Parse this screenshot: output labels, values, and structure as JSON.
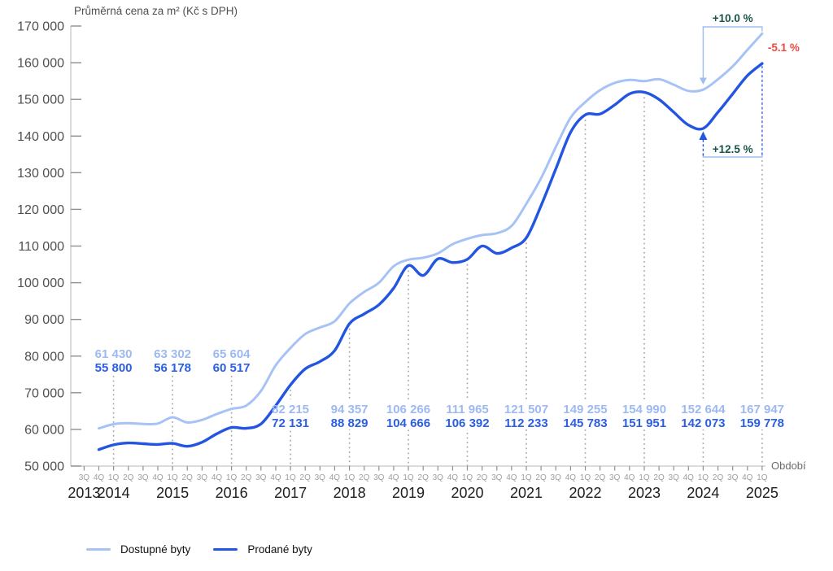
{
  "chart_data": {
    "type": "line",
    "title": "Průměrná cena za m² (Kč s DPH)",
    "x_axis_label": "Období",
    "ylim": [
      50000,
      170000
    ],
    "grid": "vertical-dotted-at-labeled-quarters",
    "legend_position": "bottom-left",
    "y_ticks": [
      {
        "value": 50000,
        "label": "50 000"
      },
      {
        "value": 60000,
        "label": "60 000"
      },
      {
        "value": 70000,
        "label": "70 000"
      },
      {
        "value": 80000,
        "label": "80 000"
      },
      {
        "value": 90000,
        "label": "90 000"
      },
      {
        "value": 100000,
        "label": "100 000"
      },
      {
        "value": 110000,
        "label": "110 000"
      },
      {
        "value": 120000,
        "label": "120 000"
      },
      {
        "value": 130000,
        "label": "130 000"
      },
      {
        "value": 140000,
        "label": "140 000"
      },
      {
        "value": 150000,
        "label": "150 000"
      },
      {
        "value": 160000,
        "label": "160 000"
      },
      {
        "value": 170000,
        "label": "170 000"
      }
    ],
    "x_quarter_labels": [
      "3Q",
      "4Q",
      "1Q",
      "2Q",
      "3Q",
      "4Q",
      "1Q",
      "2Q",
      "3Q",
      "4Q",
      "1Q",
      "2Q",
      "3Q",
      "4Q",
      "1Q",
      "2Q",
      "3Q",
      "4Q",
      "1Q",
      "2Q",
      "3Q",
      "4Q",
      "1Q",
      "2Q",
      "3Q",
      "4Q",
      "1Q",
      "2Q",
      "3Q",
      "4Q",
      "1Q",
      "2Q",
      "3Q",
      "4Q",
      "1Q",
      "2Q",
      "3Q",
      "4Q",
      "1Q",
      "2Q",
      "3Q",
      "4Q",
      "1Q",
      "2Q",
      "3Q",
      "4Q",
      "1Q"
    ],
    "x_year_labels": [
      {
        "label": "2013",
        "tick_index": 0
      },
      {
        "label": "2014",
        "tick_index": 2
      },
      {
        "label": "2015",
        "tick_index": 6
      },
      {
        "label": "2016",
        "tick_index": 10
      },
      {
        "label": "2017",
        "tick_index": 14
      },
      {
        "label": "2018",
        "tick_index": 18
      },
      {
        "label": "2019",
        "tick_index": 22
      },
      {
        "label": "2020",
        "tick_index": 26
      },
      {
        "label": "2021",
        "tick_index": 30
      },
      {
        "label": "2022",
        "tick_index": 34
      },
      {
        "label": "2023",
        "tick_index": 38
      },
      {
        "label": "2024",
        "tick_index": 42
      },
      {
        "label": "2025",
        "tick_index": 46
      }
    ],
    "series": [
      {
        "name": "Dostupné byty",
        "color": "#a7c2f5",
        "values": [
          null,
          60300,
          61430,
          61700,
          61500,
          61600,
          63302,
          61900,
          62600,
          64200,
          65604,
          66500,
          70500,
          77500,
          82215,
          86000,
          87800,
          89500,
          94357,
          97500,
          100000,
          104500,
          106266,
          106800,
          108000,
          110500,
          111965,
          113000,
          113500,
          115500,
          121507,
          128500,
          137000,
          145000,
          149255,
          152500,
          154500,
          155300,
          154990,
          155500,
          154000,
          152300,
          152644,
          155500,
          159000,
          163500,
          167947
        ]
      },
      {
        "name": "Prodané byty",
        "color": "#2155e2",
        "values": [
          null,
          54500,
          55800,
          56300,
          56100,
          55900,
          56178,
          55400,
          56500,
          58800,
          60517,
          60300,
          61500,
          66500,
          72131,
          76500,
          78500,
          81500,
          88829,
          91500,
          94000,
          98500,
          104666,
          102000,
          106500,
          105500,
          106392,
          110000,
          108000,
          109500,
          112233,
          121000,
          131000,
          141000,
          145783,
          146000,
          148500,
          151500,
          151951,
          150000,
          146500,
          143000,
          142073,
          146500,
          151500,
          156500,
          159778
        ]
      }
    ],
    "labeled_points": [
      {
        "tick_index": 2,
        "placement": "above"
      },
      {
        "tick_index": 6,
        "placement": "above"
      },
      {
        "tick_index": 10,
        "placement": "above"
      },
      {
        "tick_index": 14,
        "placement": "below"
      },
      {
        "tick_index": 18,
        "placement": "below"
      },
      {
        "tick_index": 22,
        "placement": "below"
      },
      {
        "tick_index": 26,
        "placement": "below"
      },
      {
        "tick_index": 30,
        "placement": "below"
      },
      {
        "tick_index": 34,
        "placement": "below"
      },
      {
        "tick_index": 38,
        "placement": "below"
      },
      {
        "tick_index": 42,
        "placement": "below"
      },
      {
        "tick_index": 46,
        "placement": "below"
      }
    ],
    "colors": {
      "available_label_text": "#9db9f2",
      "sold_label_text": "#2b5ee4",
      "positive": "#19564a",
      "negative": "#f04a41",
      "bracket_blue": "#9ebdf5",
      "dashed_vertical_blue": "#3a66e0"
    },
    "annotations": [
      {
        "role": "available-change",
        "text": "+10.0 %"
      },
      {
        "role": "gap-change",
        "text": "-5.1 %"
      },
      {
        "role": "sold-change",
        "text": "+12.5 %"
      }
    ]
  }
}
